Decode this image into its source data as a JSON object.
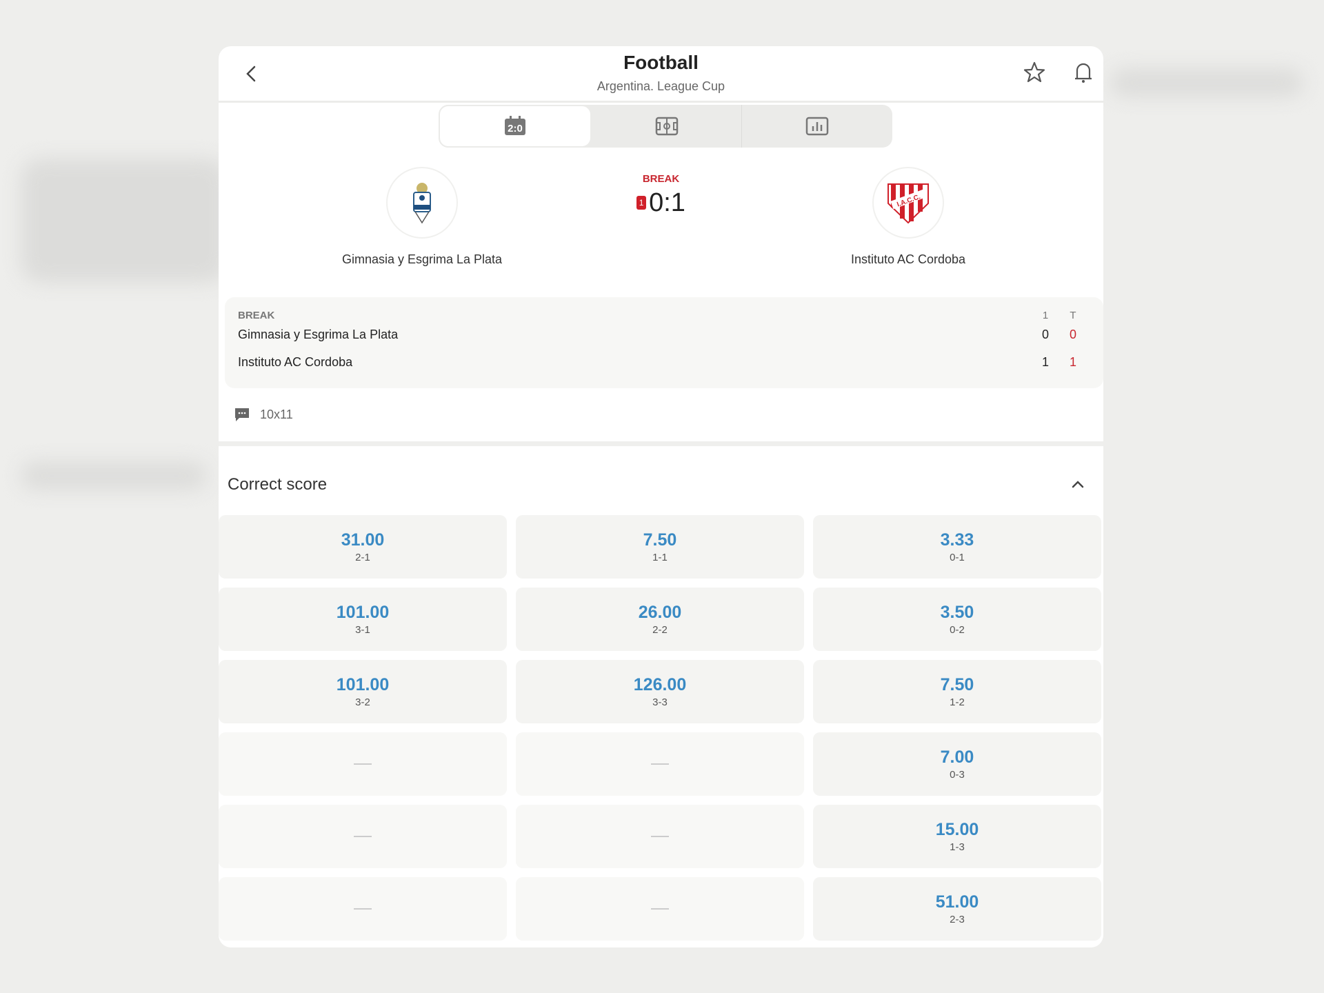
{
  "header": {
    "title": "Football",
    "subtitle": "Argentina. League Cup"
  },
  "tabs": [
    {
      "icon": "scoreboard-icon",
      "active": true
    },
    {
      "icon": "field-icon",
      "active": false
    },
    {
      "icon": "stats-icon",
      "active": false
    }
  ],
  "match": {
    "status": "BREAK",
    "score": "0:1",
    "red_card_count": "1",
    "home": {
      "name": "Gimnasia y Esgrima La Plata"
    },
    "away": {
      "name": "Instituto AC Cordoba"
    }
  },
  "scoreboard": {
    "status": "BREAK",
    "col1": "1",
    "col2": "T",
    "rows": [
      {
        "team": "Gimnasia y Esgrima La Plata",
        "p1": "0",
        "total": "0"
      },
      {
        "team": "Instituto AC Cordoba",
        "p1": "1",
        "total": "1"
      }
    ]
  },
  "comment": {
    "text": "10x11"
  },
  "market": {
    "title": "Correct score",
    "cells": [
      {
        "odd": "31.00",
        "label": "2-1"
      },
      {
        "odd": "7.50",
        "label": "1-1"
      },
      {
        "odd": "3.33",
        "label": "0-1"
      },
      {
        "odd": "101.00",
        "label": "3-1"
      },
      {
        "odd": "26.00",
        "label": "2-2"
      },
      {
        "odd": "3.50",
        "label": "0-2"
      },
      {
        "odd": "101.00",
        "label": "3-2"
      },
      {
        "odd": "126.00",
        "label": "3-3"
      },
      {
        "odd": "7.50",
        "label": "1-2"
      },
      null,
      null,
      {
        "odd": "7.00",
        "label": "0-3"
      },
      null,
      null,
      {
        "odd": "15.00",
        "label": "1-3"
      },
      null,
      null,
      {
        "odd": "51.00",
        "label": "2-3"
      }
    ]
  },
  "colors": {
    "accent": "#3a8ac4",
    "live": "#c8262f"
  }
}
